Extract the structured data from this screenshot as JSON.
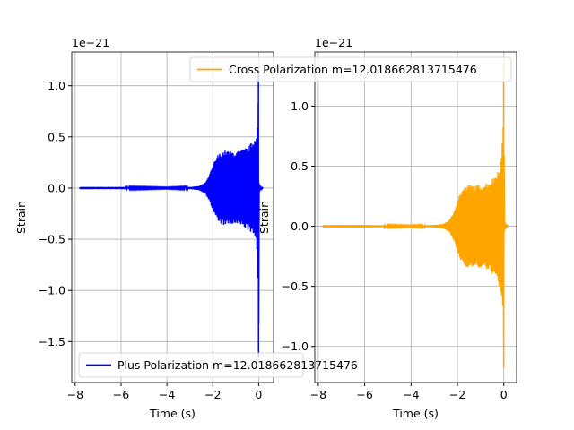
{
  "chart_data": [
    {
      "type": "line",
      "title": "",
      "xlabel": "Time (s)",
      "ylabel": "Strain",
      "offset_text": "1e−21",
      "xlim": [
        -8.15,
        0.65
      ],
      "ylim": [
        -1.9,
        1.33
      ],
      "xticks": [
        -8,
        -6,
        -4,
        -2,
        0
      ],
      "xtick_labels": [
        "−8",
        "−6",
        "−4",
        "−2",
        "0"
      ],
      "yticks": [
        -1.5,
        -1.0,
        -0.5,
        0.0,
        0.5,
        1.0
      ],
      "ytick_labels": [
        "−1.5",
        "−1.0",
        "−0.5",
        "0.0",
        "0.5",
        "1.0"
      ],
      "grid": true,
      "legend_position": "lower-left",
      "series": [
        {
          "name": "Plus Polarization m=12.018662813715476",
          "color": "#0000ff",
          "envelope": {
            "t": [
              -7.8,
              -6.0,
              -4.0,
              -3.0,
              -2.6,
              -2.35,
              -2.2,
              -2.1,
              -1.95,
              -1.8,
              -1.6,
              -1.4,
              -1.2,
              -1.0,
              -0.8,
              -0.6,
              -0.4,
              -0.2,
              -0.08,
              -0.03,
              -0.01,
              0.0,
              0.02,
              0.1,
              0.2
            ],
            "upper": [
              0.01,
              0.01,
              0.005,
              0.01,
              0.02,
              0.05,
              0.1,
              0.16,
              0.25,
              0.32,
              0.36,
              0.37,
              0.36,
              0.36,
              0.37,
              0.39,
              0.42,
              0.48,
              0.57,
              0.7,
              0.95,
              1.12,
              0.05,
              0.01,
              0.0
            ],
            "lower": [
              -0.01,
              -0.01,
              -0.005,
              -0.01,
              -0.02,
              -0.05,
              -0.1,
              -0.16,
              -0.25,
              -0.32,
              -0.36,
              -0.37,
              -0.36,
              -0.36,
              -0.37,
              -0.39,
              -0.42,
              -0.48,
              -0.6,
              -0.95,
              -1.4,
              -1.65,
              -0.05,
              -0.01,
              0.0
            ]
          }
        }
      ]
    },
    {
      "type": "line",
      "title": "",
      "xlabel": "Time (s)",
      "ylabel": "Strain",
      "offset_text": "1e−21",
      "xlim": [
        -8.15,
        0.55
      ],
      "ylim": [
        -1.3,
        1.45
      ],
      "xticks": [
        -8,
        -6,
        -4,
        -2,
        0
      ],
      "xtick_labels": [
        "−8",
        "−6",
        "−4",
        "−2",
        "0"
      ],
      "yticks": [
        -1.0,
        -0.5,
        0.0,
        0.5,
        1.0
      ],
      "ytick_labels": [
        "−1.0",
        "−0.5",
        "0.0",
        "0.5",
        "1.0"
      ],
      "grid": true,
      "legend_position": "upper-right",
      "series": [
        {
          "name": "Cross Polarization m=12.018662813715476",
          "color": "#ffa500",
          "envelope": {
            "t": [
              -7.8,
              -6.0,
              -4.0,
              -3.0,
              -2.6,
              -2.35,
              -2.2,
              -2.1,
              -1.95,
              -1.8,
              -1.6,
              -1.4,
              -1.2,
              -1.0,
              -0.8,
              -0.6,
              -0.4,
              -0.2,
              -0.08,
              -0.03,
              -0.01,
              0.0,
              0.02,
              0.1,
              0.2
            ],
            "upper": [
              0.01,
              0.01,
              0.005,
              0.01,
              0.02,
              0.05,
              0.1,
              0.16,
              0.25,
              0.31,
              0.34,
              0.35,
              0.34,
              0.35,
              0.36,
              0.38,
              0.42,
              0.5,
              0.62,
              0.9,
              1.2,
              1.35,
              0.05,
              0.01,
              0.0
            ],
            "lower": [
              -0.01,
              -0.01,
              -0.005,
              -0.01,
              -0.02,
              -0.05,
              -0.1,
              -0.16,
              -0.25,
              -0.31,
              -0.34,
              -0.35,
              -0.34,
              -0.35,
              -0.36,
              -0.38,
              -0.42,
              -0.5,
              -0.62,
              -0.85,
              -1.05,
              -1.18,
              -0.05,
              -0.01,
              0.0
            ]
          }
        }
      ]
    }
  ]
}
